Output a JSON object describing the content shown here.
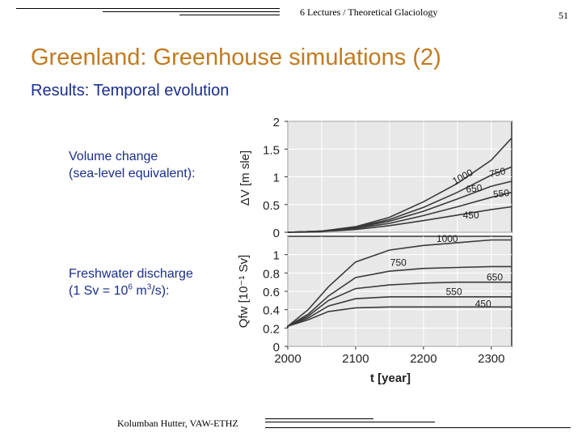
{
  "header": {
    "course": "6 Lectures / Theoretical Glaciology",
    "page_number": "51"
  },
  "title": "Greenland: Greenhouse simulations (2)",
  "subtitle": "Results: Temporal evolution",
  "labels": {
    "volume_line1": "Volume change",
    "volume_line2": "(sea-level equivalent):",
    "fresh_line1": "Freshwater discharge",
    "fresh_line2_a": "(1 Sv = 10",
    "fresh_line2_sup1": "6",
    "fresh_line2_b": " m",
    "fresh_line2_sup2": "3",
    "fresh_line2_c": "/s):"
  },
  "footer": {
    "author": "Kolumban Hutter, VAW-ETHZ"
  },
  "colors": {
    "title": "#c27a1f",
    "subtitle": "#1a2e8a",
    "plot_bg": "#e8e8e8",
    "curve": "#3a3a3a"
  },
  "chart_data": [
    {
      "type": "line",
      "ylabel": "ΔV [m sle]",
      "xlim": [
        2000,
        2330
      ],
      "ylim": [
        0,
        2
      ],
      "yticks": [
        "0",
        "0.5",
        "1",
        "1.5",
        "2"
      ],
      "yticks_values": [
        0,
        0.5,
        1,
        1.5,
        2
      ],
      "grid": true,
      "series": [
        {
          "name": "1000",
          "x": [
            2000,
            2050,
            2100,
            2150,
            2200,
            2250,
            2300,
            2330
          ],
          "values": [
            0,
            0.02,
            0.1,
            0.27,
            0.55,
            0.88,
            1.3,
            1.7
          ]
        },
        {
          "name": "750",
          "x": [
            2000,
            2050,
            2100,
            2150,
            2200,
            2250,
            2300,
            2330
          ],
          "values": [
            0,
            0.02,
            0.09,
            0.23,
            0.45,
            0.72,
            1.03,
            1.18
          ]
        },
        {
          "name": "650",
          "x": [
            2000,
            2050,
            2100,
            2150,
            2200,
            2250,
            2300,
            2330
          ],
          "values": [
            0,
            0.02,
            0.08,
            0.2,
            0.38,
            0.6,
            0.83,
            0.92
          ]
        },
        {
          "name": "550",
          "x": [
            2000,
            2050,
            2100,
            2150,
            2200,
            2250,
            2300,
            2330
          ],
          "values": [
            0,
            0.02,
            0.07,
            0.16,
            0.3,
            0.46,
            0.63,
            0.72
          ]
        },
        {
          "name": "450",
          "x": [
            2000,
            2050,
            2100,
            2150,
            2200,
            2250,
            2300,
            2330
          ],
          "values": [
            0,
            0.01,
            0.05,
            0.12,
            0.21,
            0.31,
            0.41,
            0.46
          ]
        }
      ]
    },
    {
      "type": "line",
      "ylabel": "Qfw [10⁻¹ Sv]",
      "xlabel": "t [year]",
      "xlim": [
        2000,
        2330
      ],
      "ylim": [
        0,
        1.2
      ],
      "xticks": [
        "2000",
        "2100",
        "2200",
        "2300"
      ],
      "xticks_values": [
        2000,
        2100,
        2200,
        2300
      ],
      "yticks": [
        "0",
        "0.2",
        "0.4",
        "0.6",
        "0.8",
        "1"
      ],
      "yticks_values": [
        0,
        0.2,
        0.4,
        0.6,
        0.8,
        1
      ],
      "grid": true,
      "series": [
        {
          "name": "1000",
          "x": [
            1985,
            2000,
            2030,
            2060,
            2100,
            2150,
            2200,
            2250,
            2300,
            2330
          ],
          "values": [
            0.2,
            0.22,
            0.4,
            0.65,
            0.92,
            1.05,
            1.1,
            1.13,
            1.16,
            1.16
          ]
        },
        {
          "name": "750",
          "x": [
            1985,
            2000,
            2030,
            2060,
            2100,
            2150,
            2200,
            2250,
            2300,
            2330
          ],
          "values": [
            0.2,
            0.22,
            0.35,
            0.55,
            0.75,
            0.82,
            0.85,
            0.86,
            0.87,
            0.87
          ]
        },
        {
          "name": "650",
          "x": [
            1985,
            2000,
            2030,
            2060,
            2100,
            2150,
            2200,
            2250,
            2300,
            2330
          ],
          "values": [
            0.2,
            0.22,
            0.33,
            0.5,
            0.63,
            0.67,
            0.69,
            0.7,
            0.7,
            0.7
          ]
        },
        {
          "name": "550",
          "x": [
            1985,
            2000,
            2030,
            2060,
            2100,
            2150,
            2200,
            2250,
            2300,
            2330
          ],
          "values": [
            0.2,
            0.22,
            0.31,
            0.44,
            0.52,
            0.54,
            0.54,
            0.54,
            0.54,
            0.54
          ]
        },
        {
          "name": "450",
          "x": [
            1985,
            2000,
            2030,
            2060,
            2100,
            2150,
            2200,
            2250,
            2300,
            2330
          ],
          "values": [
            0.2,
            0.22,
            0.29,
            0.38,
            0.42,
            0.43,
            0.43,
            0.43,
            0.43,
            0.43
          ]
        }
      ]
    }
  ]
}
